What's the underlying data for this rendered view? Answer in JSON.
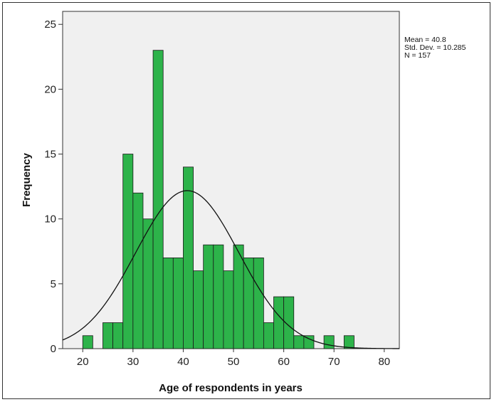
{
  "chart_data": {
    "type": "bar",
    "subtype": "histogram",
    "xlabel": "Age of respondents in years",
    "ylabel": "Frequency",
    "xlim": [
      16,
      83
    ],
    "ylim": [
      0,
      26
    ],
    "x_ticks": [
      20,
      30,
      40,
      50,
      60,
      70,
      80
    ],
    "y_ticks": [
      0,
      5,
      10,
      15,
      20,
      25
    ],
    "bin_width": 2,
    "bins": [
      {
        "start": 20,
        "value": 1
      },
      {
        "start": 22,
        "value": 0
      },
      {
        "start": 24,
        "value": 2
      },
      {
        "start": 26,
        "value": 2
      },
      {
        "start": 28,
        "value": 15
      },
      {
        "start": 30,
        "value": 12
      },
      {
        "start": 32,
        "value": 10
      },
      {
        "start": 34,
        "value": 23
      },
      {
        "start": 36,
        "value": 7
      },
      {
        "start": 38,
        "value": 7
      },
      {
        "start": 40,
        "value": 14
      },
      {
        "start": 42,
        "value": 6
      },
      {
        "start": 44,
        "value": 8
      },
      {
        "start": 46,
        "value": 8
      },
      {
        "start": 48,
        "value": 6
      },
      {
        "start": 50,
        "value": 8
      },
      {
        "start": 52,
        "value": 7
      },
      {
        "start": 54,
        "value": 7
      },
      {
        "start": 56,
        "value": 2
      },
      {
        "start": 58,
        "value": 4
      },
      {
        "start": 60,
        "value": 4
      },
      {
        "start": 62,
        "value": 1
      },
      {
        "start": 64,
        "value": 1
      },
      {
        "start": 66,
        "value": 0
      },
      {
        "start": 68,
        "value": 1
      },
      {
        "start": 70,
        "value": 0
      },
      {
        "start": 72,
        "value": 1
      }
    ],
    "normal_curve": {
      "mean": 40.8,
      "std_dev": 10.285,
      "n": 157
    },
    "stats_lines": [
      "Mean = 40.8",
      "Std. Dev. = 10.285",
      "N = 157"
    ],
    "grid": false,
    "colors": {
      "bar_fill": "#2db34a",
      "bar_edge": "#1a1a1a",
      "plot_bg": "#f0f0f0",
      "curve": "#111111"
    }
  }
}
